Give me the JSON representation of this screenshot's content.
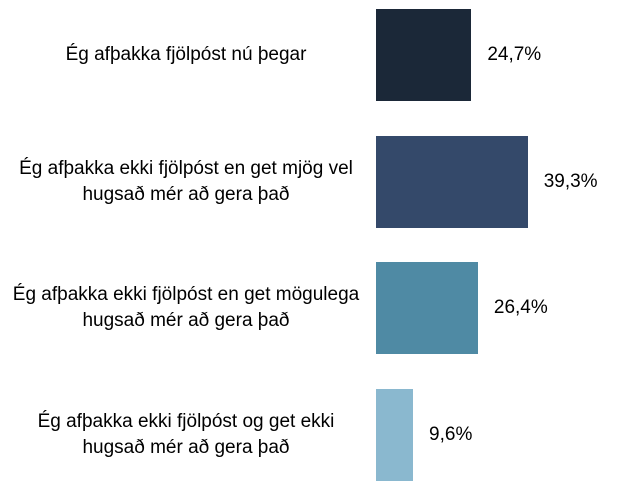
{
  "chart_data": {
    "type": "bar",
    "orientation": "horizontal",
    "categories": [
      "Ég afþakka fjölpóst nú þegar",
      "Ég afþakka ekki fjölpóst en get mjög vel hugsað mér að gera það",
      "Ég afþakka ekki fjölpóst en get mögulega hugsað mér að gera það",
      "Ég afþakka ekki fjölpóst og get ekki hugsað mér að gera það"
    ],
    "values": [
      24.7,
      39.3,
      26.4,
      9.6
    ],
    "value_labels": [
      "24,7%",
      "39,3%",
      "26,4%",
      "9,6%"
    ],
    "colors": [
      "#1b2838",
      "#34496a",
      "#4f8aa4",
      "#8ab8cf"
    ]
  }
}
